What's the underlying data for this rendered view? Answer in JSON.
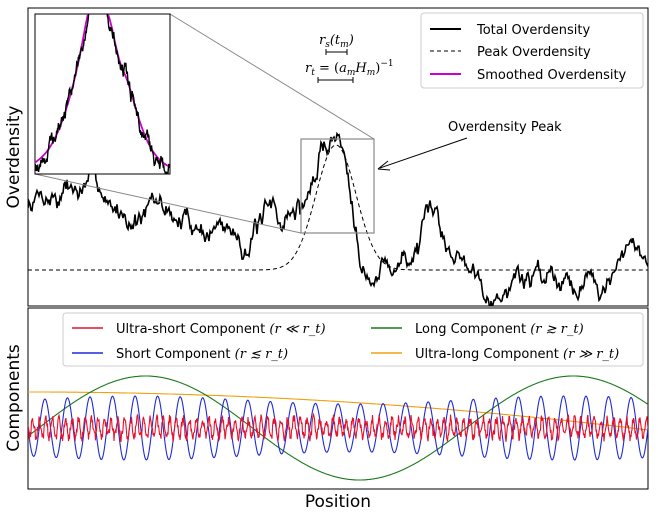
{
  "chart_data": [
    {
      "type": "line",
      "ylabel": "Overdensity",
      "grid": false,
      "legend_position": "top-right",
      "series": [
        {
          "name": "Total Overdensity",
          "color": "#000000",
          "style": "solid"
        },
        {
          "name": "Peak Overdensity",
          "color": "#000000",
          "style": "dashed"
        },
        {
          "name": "Smoothed Overdensity",
          "color": "#cc00cc",
          "style": "solid"
        }
      ],
      "annotations": {
        "peak_label": "Overdensity Peak",
        "rs_label": "r_s(t_m)",
        "rt_label": "r_t = (a_m H_m)^{-1}"
      }
    },
    {
      "type": "line",
      "ylabel": "Components",
      "xlabel": "Position",
      "grid": false,
      "legend_position": "top",
      "series": [
        {
          "name": "Ultra-short Component",
          "cond": "(r ≪ r_t)",
          "color": "#e8102a"
        },
        {
          "name": "Short Component",
          "cond": "(r ≲ r_t)",
          "color": "#1f2ad6"
        },
        {
          "name": "Long Component",
          "cond": "(r ≳ r_t)",
          "color": "#1a7a1a"
        },
        {
          "name": "Ultra-long Component",
          "cond": "(r ≫ r_t)",
          "color": "#f0a010"
        }
      ]
    }
  ]
}
